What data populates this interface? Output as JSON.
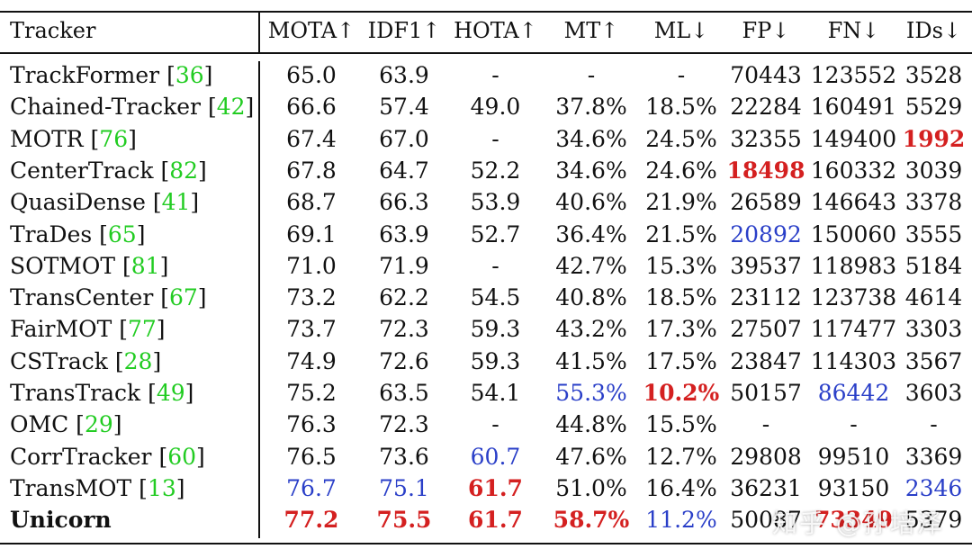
{
  "header": {
    "tracker": "Tracker",
    "cols": [
      "MOTA↑",
      "IDF1↑",
      "HOTA↑",
      "MT↑",
      "ML↓",
      "FP↓",
      "FN↓",
      "IDs↓"
    ]
  },
  "rows": [
    {
      "name": "TrackFormer",
      "ref": "36",
      "cells": [
        "65.0",
        "63.9",
        "-",
        "-",
        "-",
        "70443",
        "123552",
        "3528"
      ]
    },
    {
      "name": "Chained-Tracker",
      "ref": "42",
      "cells": [
        "66.6",
        "57.4",
        "49.0",
        "37.8%",
        "18.5%",
        "22284",
        "160491",
        "5529"
      ]
    },
    {
      "name": "MOTR",
      "ref": "76",
      "cells": [
        "67.4",
        "67.0",
        "-",
        "34.6%",
        "24.5%",
        "32355",
        "149400",
        "1992"
      ]
    },
    {
      "name": "CenterTrack",
      "ref": "82",
      "cells": [
        "67.8",
        "64.7",
        "52.2",
        "34.6%",
        "24.6%",
        "18498",
        "160332",
        "3039"
      ]
    },
    {
      "name": "QuasiDense",
      "ref": "41",
      "cells": [
        "68.7",
        "66.3",
        "53.9",
        "40.6%",
        "21.9%",
        "26589",
        "146643",
        "3378"
      ]
    },
    {
      "name": "TraDes",
      "ref": "65",
      "cells": [
        "69.1",
        "63.9",
        "52.7",
        "36.4%",
        "21.5%",
        "20892",
        "150060",
        "3555"
      ]
    },
    {
      "name": "SOTMOT",
      "ref": "81",
      "cells": [
        "71.0",
        "71.9",
        "-",
        "42.7%",
        "15.3%",
        "39537",
        "118983",
        "5184"
      ]
    },
    {
      "name": "TransCenter",
      "ref": "67",
      "cells": [
        "73.2",
        "62.2",
        "54.5",
        "40.8%",
        "18.5%",
        "23112",
        "123738",
        "4614"
      ]
    },
    {
      "name": "FairMOT",
      "ref": "77",
      "cells": [
        "73.7",
        "72.3",
        "59.3",
        "43.2%",
        "17.3%",
        "27507",
        "117477",
        "3303"
      ]
    },
    {
      "name": "CSTrack",
      "ref": "28",
      "cells": [
        "74.9",
        "72.6",
        "59.3",
        "41.5%",
        "17.5%",
        "23847",
        "114303",
        "3567"
      ]
    },
    {
      "name": "TransTrack",
      "ref": "49",
      "cells": [
        "75.2",
        "63.5",
        "54.1",
        "55.3%",
        "10.2%",
        "50157",
        "86442",
        "3603"
      ]
    },
    {
      "name": "OMC",
      "ref": "29",
      "cells": [
        "76.3",
        "72.3",
        "-",
        "44.8%",
        "15.5%",
        "-",
        "-",
        "-"
      ]
    },
    {
      "name": "CorrTracker",
      "ref": "60",
      "cells": [
        "76.5",
        "73.6",
        "60.7",
        "47.6%",
        "12.7%",
        "29808",
        "99510",
        "3369"
      ]
    },
    {
      "name": "TransMOT",
      "ref": "13",
      "cells": [
        "76.7",
        "75.1",
        "61.7",
        "51.0%",
        "16.4%",
        "36231",
        "93150",
        "2346"
      ]
    },
    {
      "name": "Unicorn",
      "ref": "",
      "cells": [
        "77.2",
        "75.5",
        "61.7",
        "58.7%",
        "11.2%",
        "50087",
        "73349",
        "5379"
      ]
    }
  ],
  "styles": {
    "2": {
      "8": "red"
    },
    "3": {
      "6": "red"
    },
    "5": {
      "6": "blue"
    },
    "10": {
      "4": "blue",
      "5": "red",
      "7": "blue"
    },
    "12": {
      "3": "blue"
    },
    "13": {
      "1": "blue",
      "2": "blue",
      "3": "red",
      "8": "blue"
    },
    "14": {
      "0": "bold",
      "1": "red",
      "2": "red",
      "3": "red",
      "4": "red",
      "5": "blue",
      "7": "red"
    }
  },
  "colors": {
    "red": "#d42020",
    "blue": "#2a3fc8",
    "ref_green": "#22cc22"
  },
  "watermark": "知乎 @孙培泽"
}
